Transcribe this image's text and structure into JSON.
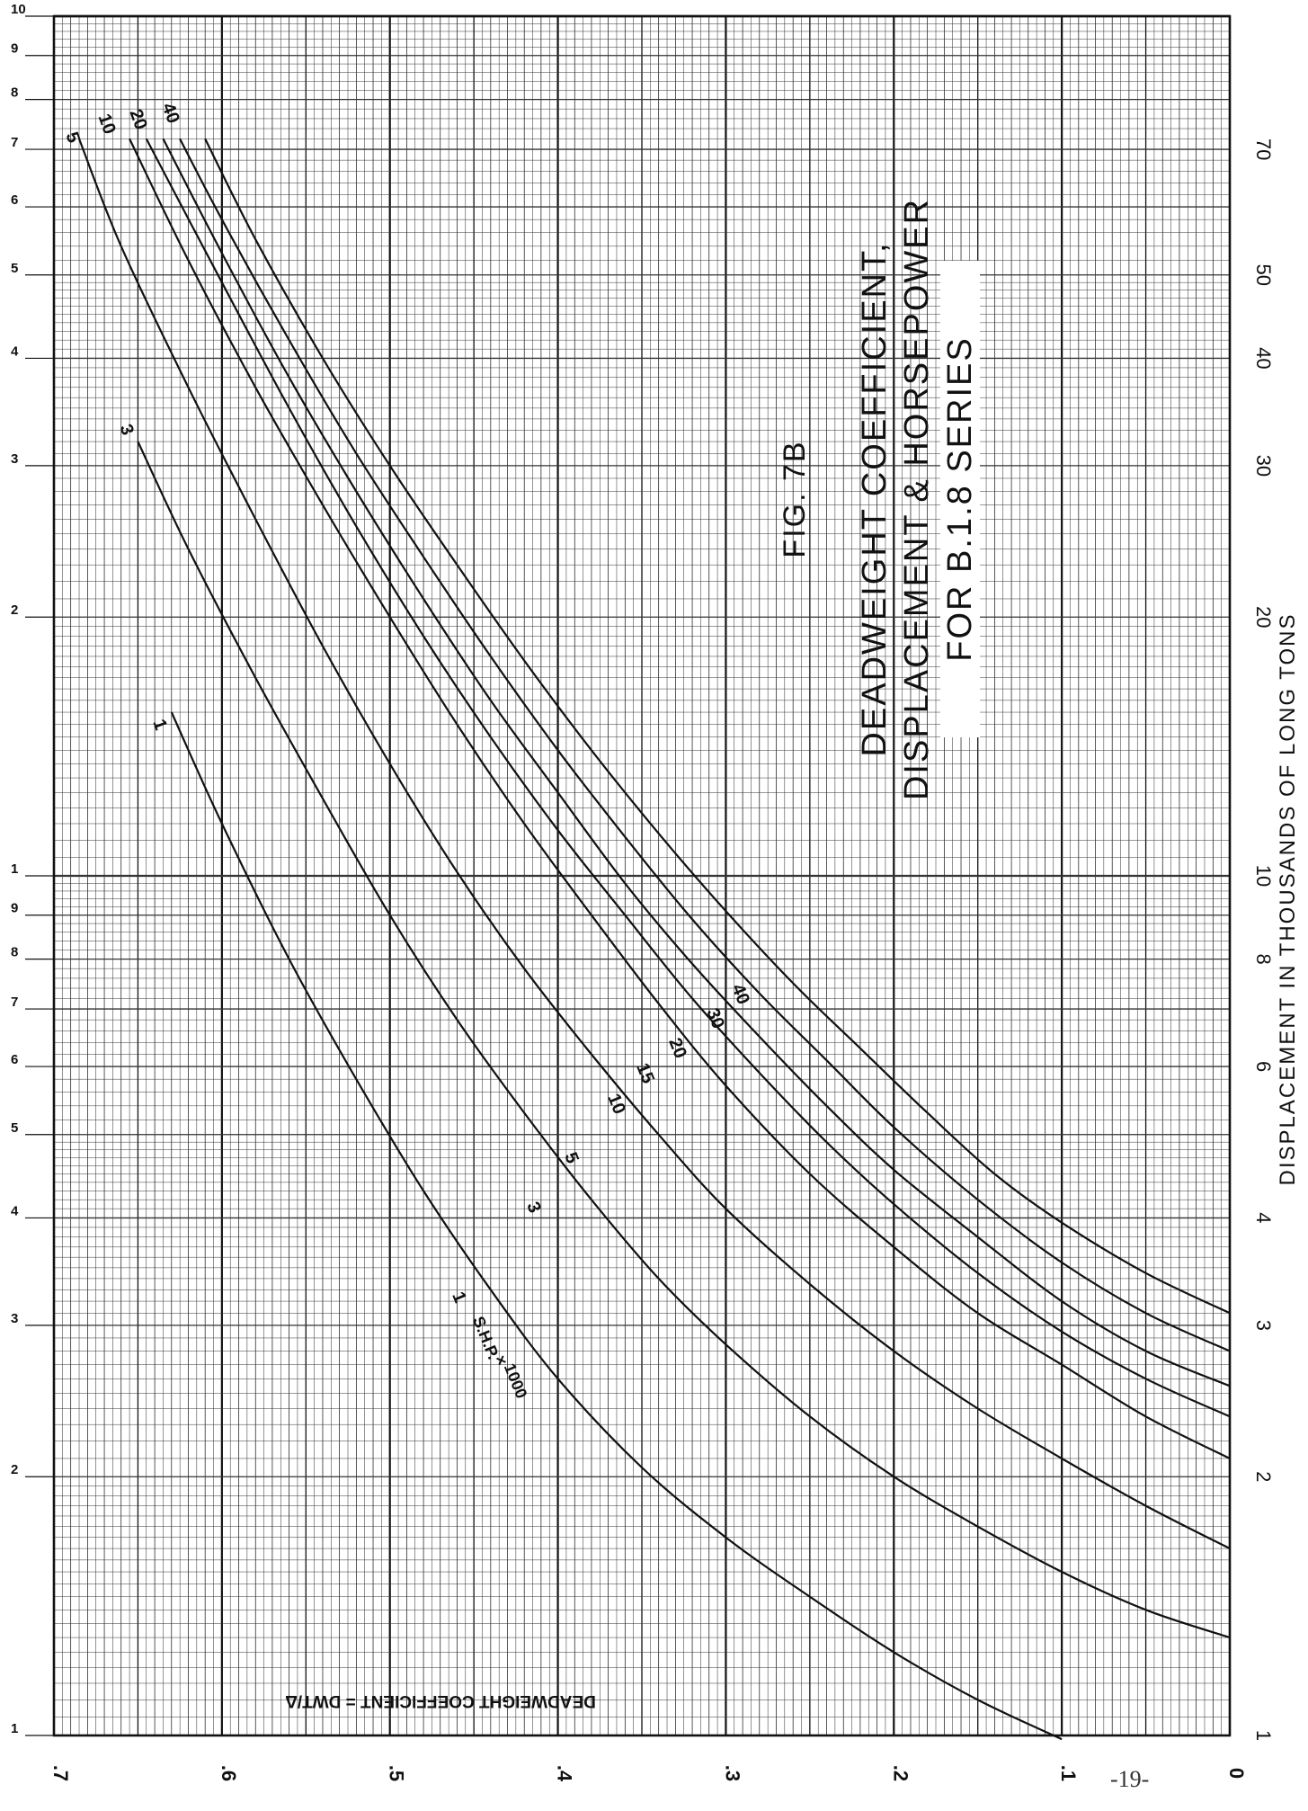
{
  "page": {
    "number": "-19-"
  },
  "chart_data": {
    "type": "line",
    "title": [
      "FIG. 7B",
      "DEADWEIGHT COEFFICIENT,",
      "DISPLACEMENT & HORSEPOWER",
      "FOR B.1.8 SERIES"
    ],
    "xlabel": "DEADWEIGHT COEFFICIENT = DWT/Δ",
    "ylabel": "DISPLACEMENT IN THOUSANDS OF LONG TONS",
    "x_axis": {
      "min": 0,
      "max": 0.7,
      "reversed": true,
      "tick_values": [
        0.7,
        0.6,
        0.5,
        0.4,
        0.3,
        0.2,
        0.1,
        0
      ],
      "tick_labels": [
        ".7",
        ".6",
        ".5",
        ".4",
        ".3",
        ".2",
        ".1",
        "0"
      ]
    },
    "y_axis": {
      "scale": "log",
      "min": 1,
      "max": 100,
      "left_tick_values": [
        1,
        2,
        3,
        4,
        5,
        6,
        7,
        8,
        9,
        10,
        20,
        30,
        40,
        50,
        60,
        70,
        80,
        90,
        100
      ],
      "left_tick_labels": [
        "1",
        "2",
        "3",
        "4",
        "5",
        "6",
        "7",
        "8",
        "9",
        "1",
        "2",
        "3",
        "4",
        "5",
        "6",
        "7",
        "8",
        "9",
        "10"
      ],
      "right_tick_values": [
        1,
        2,
        3,
        4,
        6,
        8,
        10,
        20,
        30,
        40,
        50,
        70
      ],
      "right_tick_labels": [
        "1",
        "2",
        "3",
        "4",
        "6",
        "8",
        "10",
        "20",
        "30",
        "40",
        "50",
        "70"
      ]
    },
    "grid": true,
    "series_label_title": "S.H.P. × 1000",
    "series": [
      {
        "name": "1",
        "x": [
          0.63,
          0.6,
          0.56,
          0.52,
          0.48,
          0.44,
          0.4,
          0.35,
          0.3,
          0.25,
          0.2,
          0.15,
          0.1
        ],
        "y": [
          15.5,
          11.5,
          8.0,
          5.8,
          4.3,
          3.3,
          2.6,
          2.05,
          1.7,
          1.45,
          1.25,
          1.1,
          0.99
        ]
      },
      {
        "name": "3",
        "x": [
          0.65,
          0.62,
          0.58,
          0.54,
          0.5,
          0.46,
          0.42,
          0.38,
          0.34,
          0.3,
          0.25,
          0.2,
          0.15,
          0.1,
          0.05,
          0
        ],
        "y": [
          32,
          24,
          17,
          12.3,
          9.0,
          6.8,
          5.3,
          4.2,
          3.4,
          2.85,
          2.35,
          2.0,
          1.75,
          1.55,
          1.4,
          1.3
        ]
      },
      {
        "name": "5",
        "x": [
          0.685,
          0.66,
          0.62,
          0.58,
          0.54,
          0.5,
          0.46,
          0.42,
          0.38,
          0.34,
          0.3,
          0.25,
          0.2,
          0.15,
          0.1,
          0.05,
          0
        ],
        "y": [
          72,
          54,
          37,
          26,
          18.5,
          13.5,
          10.1,
          7.8,
          6.2,
          5.0,
          4.1,
          3.35,
          2.8,
          2.4,
          2.1,
          1.85,
          1.65
        ]
      },
      {
        "name": "10",
        "x": [
          0.655,
          0.62,
          0.58,
          0.54,
          0.5,
          0.46,
          0.42,
          0.38,
          0.34,
          0.3,
          0.25,
          0.2,
          0.15,
          0.1,
          0.05,
          0
        ],
        "y": [
          72,
          52,
          37,
          27,
          20,
          15,
          11.5,
          9.0,
          7.1,
          5.7,
          4.5,
          3.7,
          3.1,
          2.7,
          2.35,
          2.1
        ]
      },
      {
        "name": "15",
        "x": [
          0.645,
          0.6,
          0.56,
          0.52,
          0.48,
          0.44,
          0.4,
          0.36,
          0.32,
          0.28,
          0.24,
          0.2,
          0.15,
          0.1,
          0.05,
          0
        ],
        "y": [
          72,
          49,
          35,
          25.5,
          19,
          14.5,
          11.3,
          9.0,
          7.2,
          5.9,
          4.9,
          4.15,
          3.45,
          2.95,
          2.6,
          2.35
        ]
      },
      {
        "name": "20",
        "x": [
          0.635,
          0.6,
          0.56,
          0.52,
          0.48,
          0.44,
          0.4,
          0.36,
          0.32,
          0.28,
          0.24,
          0.2,
          0.15,
          0.1,
          0.05,
          0
        ],
        "y": [
          72,
          53,
          38,
          28,
          21,
          16,
          12.5,
          9.8,
          7.9,
          6.5,
          5.4,
          4.55,
          3.8,
          3.2,
          2.8,
          2.55
        ]
      },
      {
        "name": "30",
        "x": [
          0.625,
          0.6,
          0.56,
          0.52,
          0.48,
          0.44,
          0.4,
          0.36,
          0.32,
          0.28,
          0.24,
          0.2,
          0.15,
          0.1,
          0.05,
          0
        ],
        "y": [
          72,
          58,
          42,
          31,
          23.5,
          18,
          14,
          11.1,
          8.9,
          7.3,
          6.1,
          5.1,
          4.2,
          3.55,
          3.1,
          2.8
        ]
      },
      {
        "name": "40",
        "x": [
          0.61,
          0.58,
          0.54,
          0.5,
          0.46,
          0.42,
          0.38,
          0.34,
          0.3,
          0.26,
          0.22,
          0.18,
          0.14,
          0.1,
          0.05,
          0
        ],
        "y": [
          72,
          55,
          40,
          30,
          23,
          17.8,
          14,
          11.2,
          9.1,
          7.5,
          6.3,
          5.3,
          4.5,
          3.95,
          3.45,
          3.1
        ]
      }
    ],
    "curve_labels_upper": [
      "5",
      "10",
      "20",
      "40",
      "3",
      "1"
    ],
    "curve_labels_lower": [
      "40",
      "30",
      "20",
      "15",
      "10",
      "5",
      "3",
      "1"
    ],
    "curve_labels_lower_words": [
      "S.H.P.",
      "×",
      "1000"
    ],
    "colors": {
      "ink": "#111111",
      "grid_major": "#111111",
      "grid_minor": "#333333",
      "highlight": "#ffffff"
    }
  }
}
